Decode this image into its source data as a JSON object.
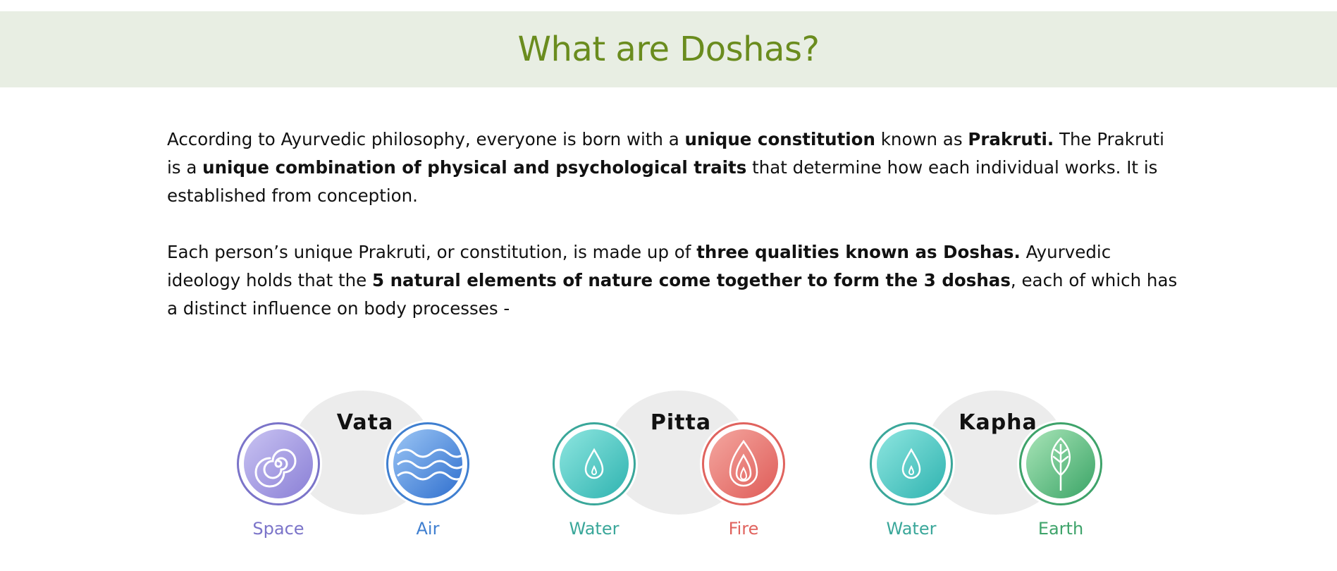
{
  "header": {
    "title": "What are Doshas?"
  },
  "intro": {
    "p1": {
      "t1": "According to Ayurvedic philosophy, everyone is born with a ",
      "b1": "unique constitution",
      "t2": " known as ",
      "b2": "Prakruti.",
      "t3": " The Prakruti is a ",
      "b3": "unique combination of physical and psychological traits",
      "t4": " that determine how each individual works. It is established from conception."
    },
    "p2": {
      "t1": "Each person’s unique Prakruti, or constitution, is made up of ",
      "b1": "three qualities known as Doshas.",
      "t2": " Ayurvedic ideology holds that the ",
      "b2": "5 natural elements of nature come together to form the 3 doshas",
      "t3": ", each of which has a distinct influence on body processes -"
    }
  },
  "doshas": [
    {
      "name": "Vata",
      "elements": [
        {
          "label": "Space",
          "icon": "spiral-icon",
          "color": "#7b74c9"
        },
        {
          "label": "Air",
          "icon": "wind-waves-icon",
          "color": "#3f7fd0"
        }
      ]
    },
    {
      "name": "Pitta",
      "elements": [
        {
          "label": "Water",
          "icon": "water-drop-icon",
          "color": "#3aa79a"
        },
        {
          "label": "Fire",
          "icon": "flame-icon",
          "color": "#e0635e"
        }
      ]
    },
    {
      "name": "Kapha",
      "elements": [
        {
          "label": "Water",
          "icon": "water-drop-icon",
          "color": "#3aa79a"
        },
        {
          "label": "Earth",
          "icon": "leaf-icon",
          "color": "#3ea36a"
        }
      ]
    }
  ]
}
